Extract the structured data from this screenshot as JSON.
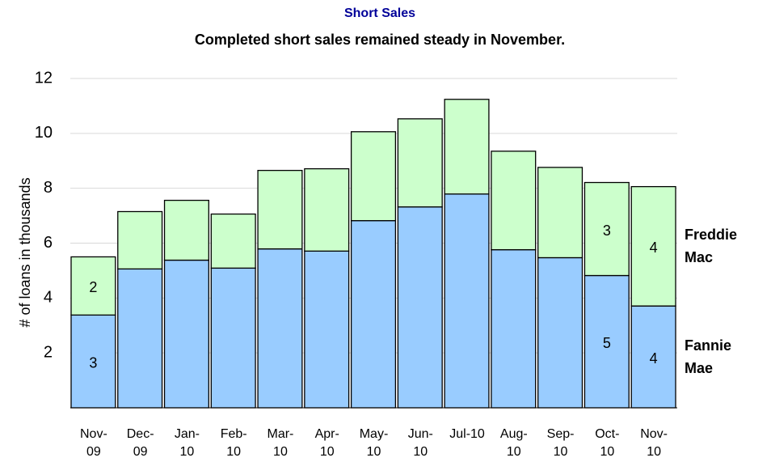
{
  "chart_data": {
    "type": "stacked-bar",
    "title": "Short Sales",
    "subtitle": "Completed short sales remained steady in November.",
    "y_label": "# of loans in thousands",
    "categories": [
      "Nov-09",
      "Dec-09",
      "Jan-10",
      "Feb-10",
      "Mar-10",
      "Apr-10",
      "May-10",
      "Jun-10",
      "Jul-10",
      "Aug-10",
      "Sep-10",
      "Oct-10",
      "Nov-10"
    ],
    "series": [
      {
        "name": "Fannie Mae",
        "color": "#99ccff",
        "values": [
          3.38,
          5.06,
          5.38,
          5.09,
          5.79,
          5.71,
          6.82,
          7.32,
          7.79,
          5.76,
          5.47,
          4.82,
          3.71
        ],
        "value_labels": [
          "3",
          null,
          null,
          null,
          null,
          null,
          null,
          null,
          null,
          null,
          null,
          "5",
          "4"
        ]
      },
      {
        "name": "Freddie Mac",
        "color": "#ccffcc",
        "values": [
          2.12,
          2.09,
          2.18,
          1.97,
          2.86,
          3.0,
          3.24,
          3.21,
          3.45,
          3.59,
          3.29,
          3.39,
          4.35
        ],
        "value_labels": [
          "2",
          null,
          null,
          null,
          null,
          null,
          null,
          null,
          null,
          null,
          null,
          "3",
          "4"
        ]
      }
    ],
    "ylim": [
      0,
      12
    ],
    "yticks": [
      2,
      4,
      6,
      8,
      10,
      12
    ],
    "grid": true
  }
}
